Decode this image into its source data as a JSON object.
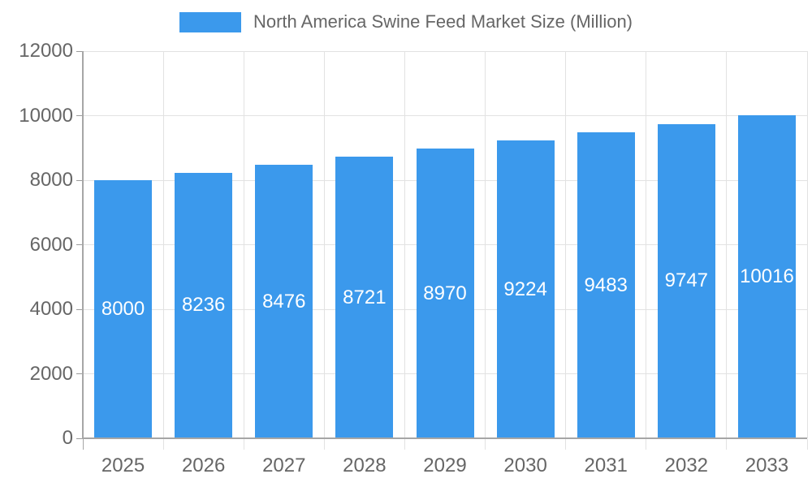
{
  "chart_data": {
    "type": "bar",
    "legend": "North America Swine Feed Market Size (Million)",
    "categories": [
      "2025",
      "2026",
      "2027",
      "2028",
      "2029",
      "2030",
      "2031",
      "2032",
      "2033"
    ],
    "values": [
      8000,
      8236,
      8476,
      8721,
      8970,
      9224,
      9483,
      9747,
      10016
    ],
    "ylim": [
      0,
      12000
    ],
    "ytick_step": 2000,
    "grid": true,
    "legend_position": "top",
    "bar_color": "#3B99EC",
    "value_label_color": "#FFFFFF",
    "axis_text_color": "#666666",
    "grid_color": "#E2E2E2",
    "axis_line_color": "#A6A6A6",
    "y_tick_color": "#9B9B9B"
  }
}
